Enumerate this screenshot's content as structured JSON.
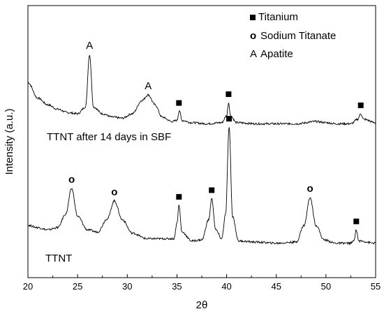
{
  "chart_data": {
    "type": "line",
    "xlabel": "2θ",
    "ylabel": "Intensity (a.u.)",
    "xlim": [
      20,
      55
    ],
    "x_ticks": [
      "20",
      "25",
      "30",
      "35",
      "40",
      "45",
      "50",
      "55"
    ],
    "y_ticks_shown": false,
    "grid": false,
    "legend": {
      "placement": "top-right",
      "entries": [
        {
          "symbol": "■",
          "label": "Titanium"
        },
        {
          "symbol": "o",
          "label": "Sodium Titanate"
        },
        {
          "symbol": "A",
          "label": "Apatite"
        }
      ]
    },
    "series": [
      {
        "name": "TTNT after 14 days in SBF",
        "baseline": 1.62,
        "points": [
          [
            20,
            1.98
          ],
          [
            21,
            1.84
          ],
          [
            22,
            1.78
          ],
          [
            23,
            1.74
          ],
          [
            24,
            1.71
          ],
          [
            25,
            1.7
          ],
          [
            25.8,
            1.76
          ],
          [
            26.2,
            2.23
          ],
          [
            26.6,
            1.76
          ],
          [
            27.5,
            1.7
          ],
          [
            28.5,
            1.67
          ],
          [
            29.5,
            1.66
          ],
          [
            30.5,
            1.7
          ],
          [
            31.5,
            1.82
          ],
          [
            32.1,
            1.87
          ],
          [
            32.8,
            1.78
          ],
          [
            33.5,
            1.67
          ],
          [
            34.5,
            1.63
          ],
          [
            35.0,
            1.64
          ],
          [
            35.25,
            1.73
          ],
          [
            35.5,
            1.64
          ],
          [
            36.5,
            1.62
          ],
          [
            38,
            1.61
          ],
          [
            39.5,
            1.62
          ],
          [
            40.0,
            1.68
          ],
          [
            40.2,
            1.8
          ],
          [
            40.4,
            1.68
          ],
          [
            41,
            1.62
          ],
          [
            43,
            1.61
          ],
          [
            45,
            1.61
          ],
          [
            47,
            1.61
          ],
          [
            49,
            1.63
          ],
          [
            50,
            1.62
          ],
          [
            51,
            1.61
          ],
          [
            52.5,
            1.61
          ],
          [
            53.2,
            1.65
          ],
          [
            53.5,
            1.7
          ],
          [
            53.8,
            1.65
          ],
          [
            55,
            1.62
          ]
        ],
        "peaks": [
          {
            "x": 26.2,
            "marker": "A"
          },
          {
            "x": 32.1,
            "marker": "A"
          },
          {
            "x": 35.2,
            "marker": "■"
          },
          {
            "x": 40.2,
            "marker": "■"
          },
          {
            "x": 53.5,
            "marker": "■"
          }
        ]
      },
      {
        "name": "TTNT",
        "baseline": 0.58,
        "points": [
          [
            20,
            0.7
          ],
          [
            21,
            0.68
          ],
          [
            22,
            0.66
          ],
          [
            23,
            0.68
          ],
          [
            23.8,
            0.8
          ],
          [
            24.4,
            1.03
          ],
          [
            25.0,
            0.78
          ],
          [
            26,
            0.66
          ],
          [
            27,
            0.64
          ],
          [
            28,
            0.76
          ],
          [
            28.7,
            0.92
          ],
          [
            29.5,
            0.75
          ],
          [
            30.5,
            0.63
          ],
          [
            32,
            0.58
          ],
          [
            33.5,
            0.58
          ],
          [
            34.7,
            0.58
          ],
          [
            35.0,
            0.72
          ],
          [
            35.2,
            0.88
          ],
          [
            35.5,
            0.64
          ],
          [
            36.5,
            0.56
          ],
          [
            37.5,
            0.57
          ],
          [
            38.2,
            0.75
          ],
          [
            38.5,
            0.94
          ],
          [
            38.9,
            0.66
          ],
          [
            39.5,
            0.58
          ],
          [
            39.9,
            0.8
          ],
          [
            40.25,
            1.58
          ],
          [
            40.6,
            0.78
          ],
          [
            41.2,
            0.56
          ],
          [
            43,
            0.55
          ],
          [
            45,
            0.54
          ],
          [
            47,
            0.55
          ],
          [
            47.8,
            0.7
          ],
          [
            48.4,
            0.95
          ],
          [
            49.0,
            0.7
          ],
          [
            49.8,
            0.57
          ],
          [
            51,
            0.54
          ],
          [
            52.5,
            0.54
          ],
          [
            52.8,
            0.56
          ],
          [
            53.05,
            0.66
          ],
          [
            53.3,
            0.56
          ],
          [
            55,
            0.54
          ]
        ],
        "peaks": [
          {
            "x": 24.4,
            "marker": "o"
          },
          {
            "x": 28.7,
            "marker": "o"
          },
          {
            "x": 35.2,
            "marker": "■"
          },
          {
            "x": 38.5,
            "marker": "■"
          },
          {
            "x": 40.25,
            "marker": "■"
          },
          {
            "x": 48.4,
            "marker": "o"
          },
          {
            "x": 53.05,
            "marker": "■"
          }
        ]
      }
    ]
  }
}
